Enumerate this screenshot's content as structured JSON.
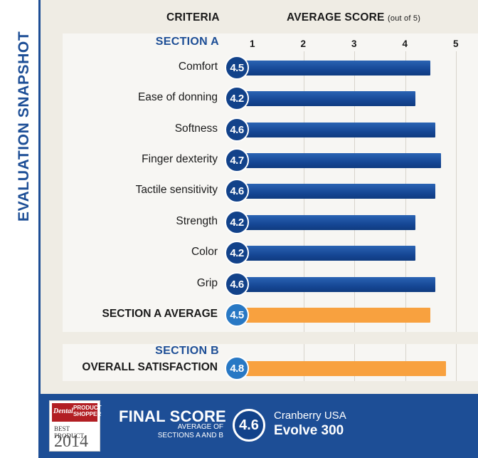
{
  "side_title": "EVALUATION SNAPSHOT",
  "header": {
    "criteria": "CRITERIA",
    "score": "AVERAGE SCORE",
    "score_note": "(out of 5)"
  },
  "chart_data": {
    "type": "bar",
    "orientation": "horizontal",
    "xlim": [
      1,
      5
    ],
    "ticks": [
      "1",
      "2",
      "3",
      "4",
      "5"
    ],
    "grid": true,
    "sections": [
      {
        "title": "SECTION A",
        "rows": [
          {
            "label": "Comfort",
            "value": 4.5,
            "badge": "4.5",
            "style": "blue"
          },
          {
            "label": "Ease of donning",
            "value": 4.2,
            "badge": "4.2",
            "style": "blue"
          },
          {
            "label": "Softness",
            "value": 4.6,
            "badge": "4.6",
            "style": "blue"
          },
          {
            "label": "Finger dexterity",
            "value": 4.7,
            "badge": "4.7",
            "style": "blue"
          },
          {
            "label": "Tactile sensitivity",
            "value": 4.6,
            "badge": "4.6",
            "style": "blue"
          },
          {
            "label": "Strength",
            "value": 4.2,
            "badge": "4.2",
            "style": "blue"
          },
          {
            "label": "Color",
            "value": 4.2,
            "badge": "4.2",
            "style": "blue"
          },
          {
            "label": "Grip",
            "value": 4.6,
            "badge": "4.6",
            "style": "blue"
          },
          {
            "label": "SECTION A AVERAGE",
            "value": 4.5,
            "badge": "4.5",
            "style": "orange"
          }
        ]
      },
      {
        "title": "SECTION B",
        "rows": [
          {
            "label": "OVERALL SATISFACTION",
            "value": 4.8,
            "badge": "4.8",
            "style": "orange"
          }
        ]
      }
    ]
  },
  "footer": {
    "logo_dental": "Dental",
    "logo_product": "PRODUCT",
    "logo_shopper": "SHOPPER",
    "logo_best": "BEST PRODUCT",
    "logo_year": "2014",
    "final_title": "FINAL SCORE",
    "final_sub_line1": "AVERAGE OF",
    "final_sub_line2": "SECTIONS A AND B",
    "final_score": "4.6",
    "manufacturer": "Cranberry USA",
    "product": "Evolve 300"
  },
  "colors": {
    "navy": "#1d4e96",
    "bar_blue": "#164795",
    "bar_orange": "#f8a13f",
    "badge_dark": "#12428a",
    "badge_light": "#2878c4",
    "panel_bg": "#efece4"
  }
}
